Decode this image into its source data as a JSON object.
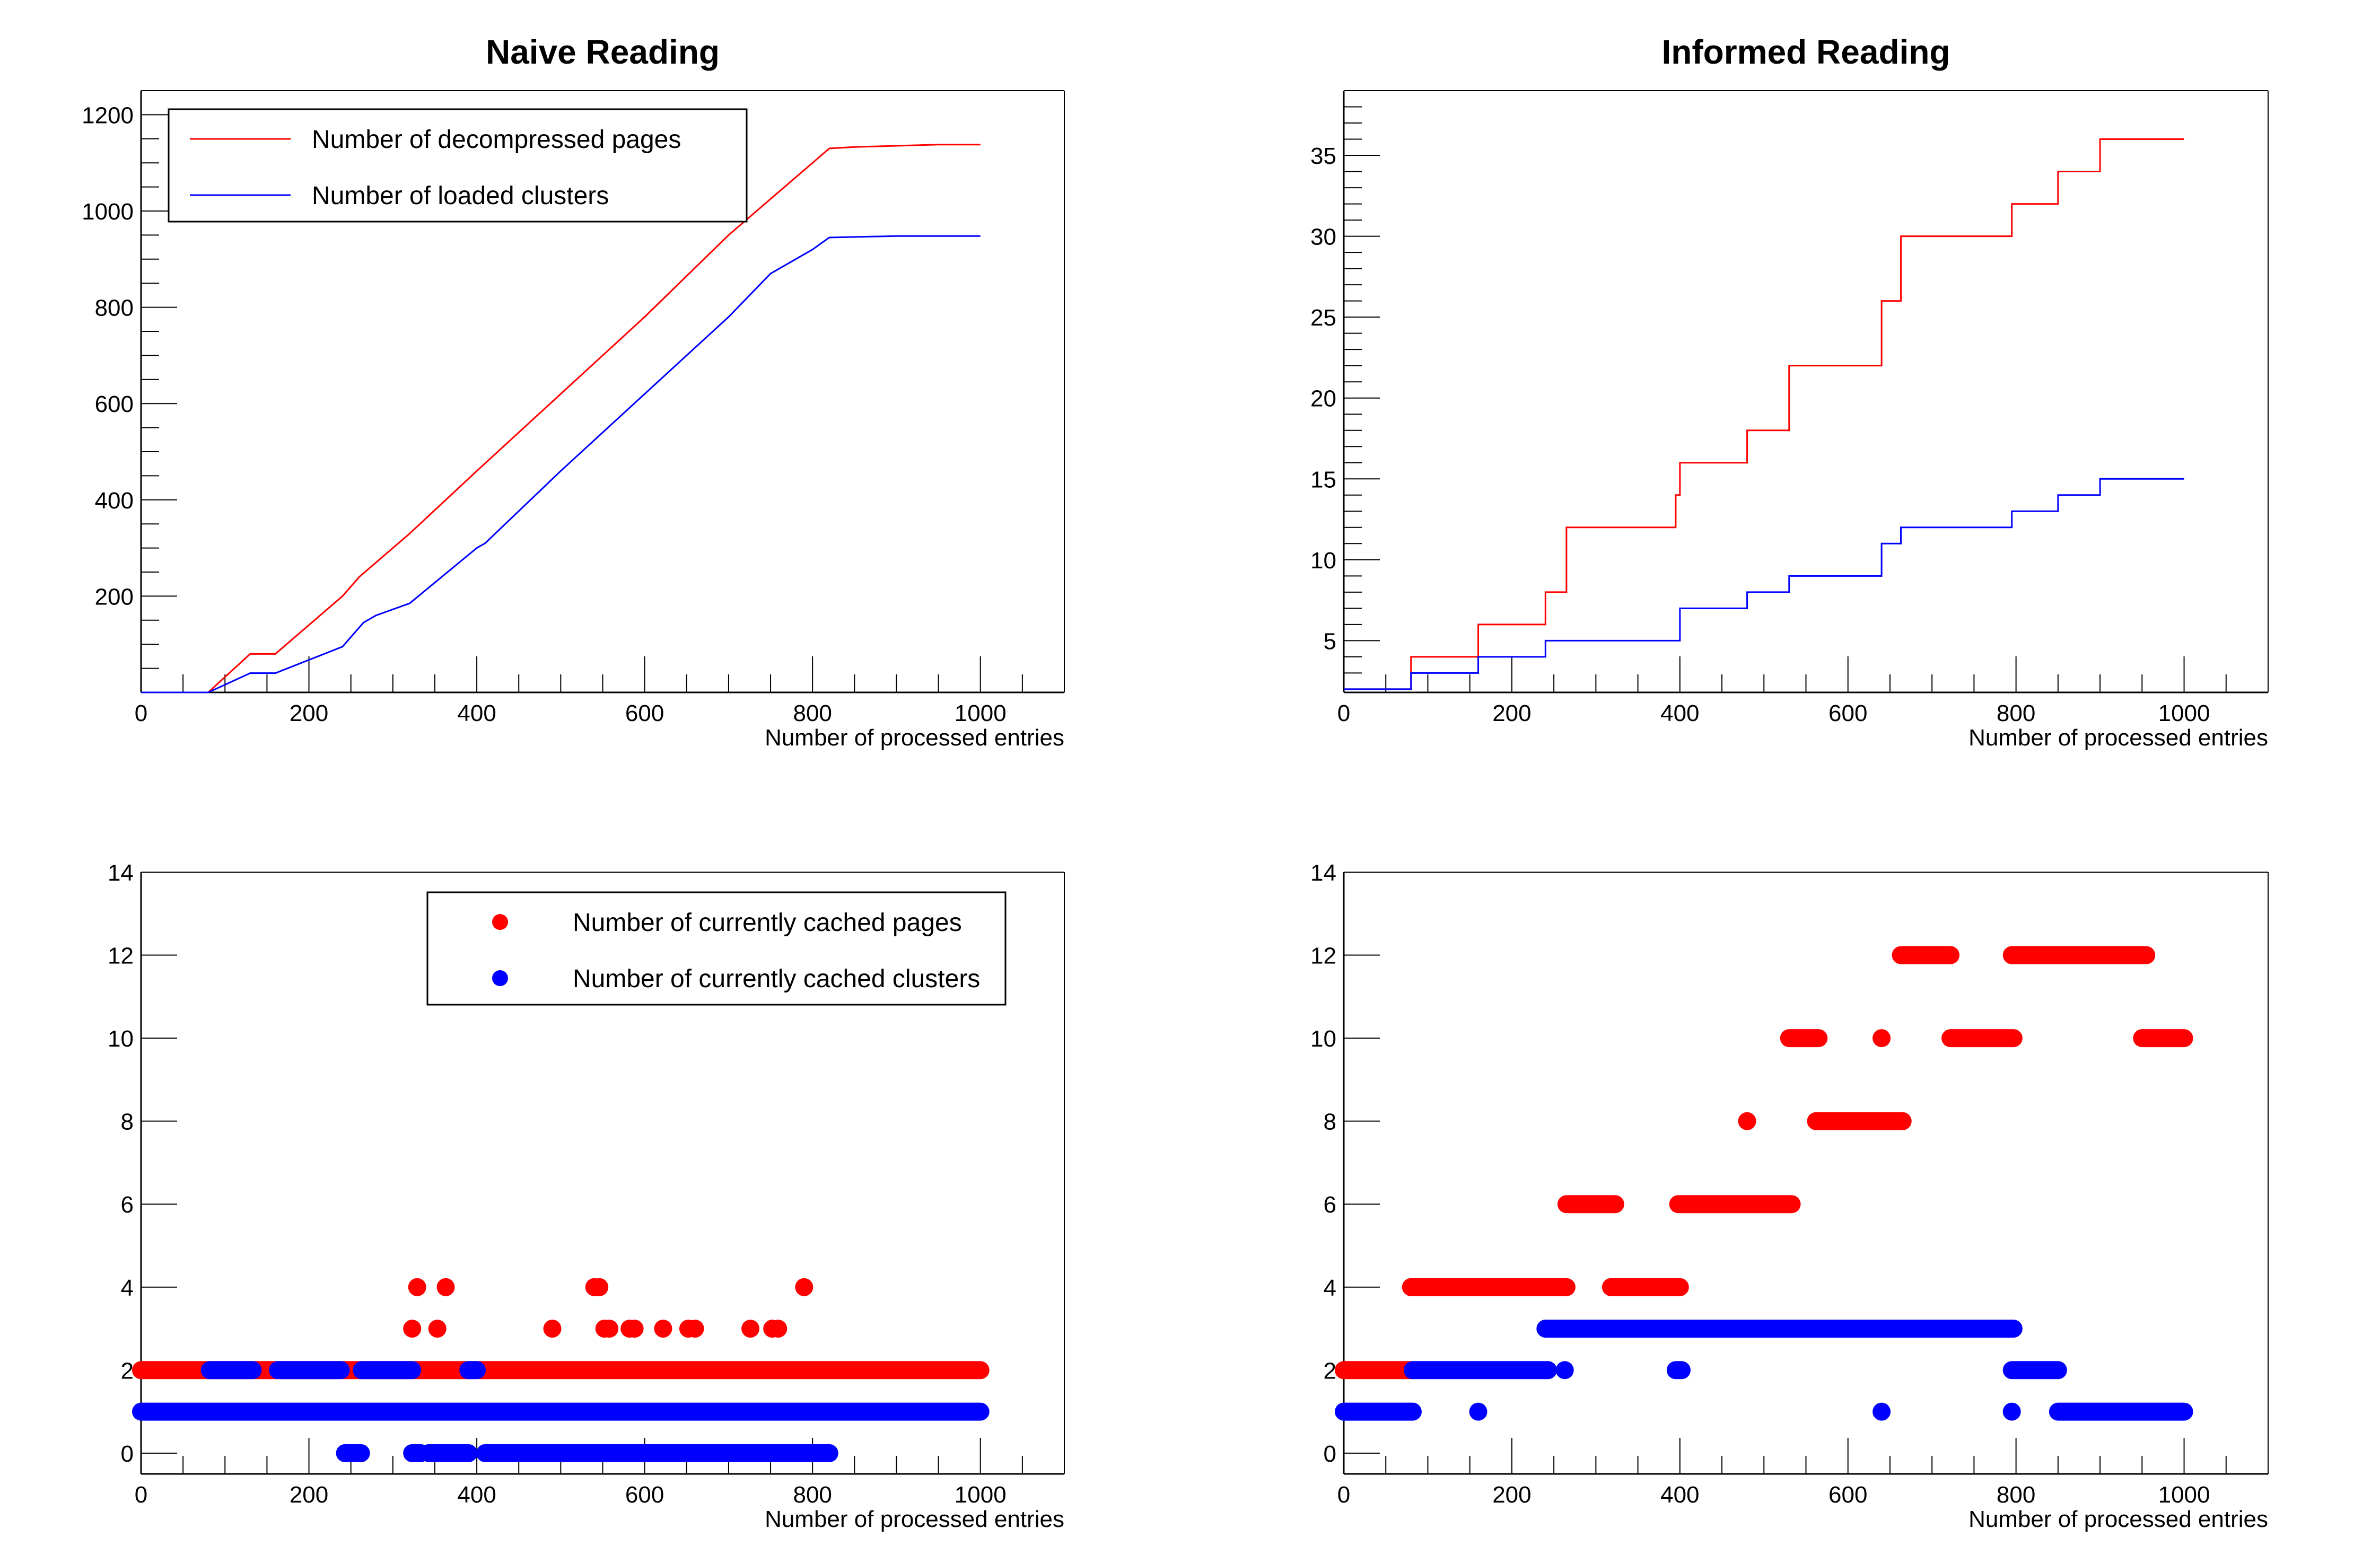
{
  "chart_data": [
    {
      "id": "naive-cumulative",
      "type": "line",
      "title": "Naive Reading",
      "xlabel": "Number of processed entries",
      "ylabel": "",
      "xlim": [
        0,
        1100
      ],
      "ylim": [
        0,
        1250
      ],
      "xticks": [
        0,
        200,
        400,
        600,
        800,
        1000
      ],
      "yticks": [
        200,
        400,
        600,
        800,
        1000,
        1200
      ],
      "x_minor_step": 50,
      "y_minor_step": 50,
      "grid": false,
      "legend": "top-left",
      "series": [
        {
          "name": "Number of decompressed pages",
          "color": "#ff0000",
          "style": "step",
          "x": [
            0,
            80,
            130,
            160,
            200,
            240,
            260,
            300,
            320,
            400,
            500,
            600,
            700,
            800,
            820,
            850,
            950,
            1000
          ],
          "y": [
            0,
            0,
            80,
            80,
            140,
            200,
            240,
            300,
            330,
            460,
            620,
            780,
            950,
            1100,
            1130,
            1133,
            1138,
            1138
          ]
        },
        {
          "name": "Number of loaded clusters",
          "color": "#0000ff",
          "style": "step",
          "x": [
            0,
            80,
            130,
            160,
            240,
            265,
            280,
            320,
            400,
            410,
            500,
            600,
            700,
            750,
            800,
            820,
            900,
            1000
          ],
          "y": [
            0,
            0,
            40,
            40,
            95,
            145,
            160,
            185,
            300,
            310,
            460,
            620,
            780,
            870,
            920,
            945,
            948,
            948
          ]
        }
      ]
    },
    {
      "id": "informed-cumulative",
      "type": "line",
      "title": "Informed Reading",
      "xlabel": "Number of processed entries",
      "ylabel": "",
      "xlim": [
        0,
        1100
      ],
      "ylim": [
        1.8,
        39
      ],
      "xticks": [
        0,
        200,
        400,
        600,
        800,
        1000
      ],
      "yticks": [
        5,
        10,
        15,
        20,
        25,
        30,
        35
      ],
      "x_minor_step": 50,
      "y_minor_step": 1,
      "grid": false,
      "legend": "none",
      "series": [
        {
          "name": "Number of decompressed pages",
          "color": "#ff0000",
          "style": "step",
          "x": [
            0,
            80,
            160,
            240,
            265,
            395,
            400,
            480,
            530,
            640,
            663,
            795,
            850,
            900,
            1000
          ],
          "y": [
            2,
            4,
            6,
            8,
            12,
            14,
            16,
            18,
            22,
            26,
            30,
            32,
            34,
            36,
            36
          ]
        },
        {
          "name": "Number of loaded clusters",
          "color": "#0000ff",
          "style": "step",
          "x": [
            0,
            80,
            160,
            240,
            400,
            480,
            530,
            640,
            663,
            795,
            850,
            900,
            1000
          ],
          "y": [
            2,
            3,
            4,
            5,
            7,
            8,
            9,
            11,
            12,
            13,
            14,
            15,
            15
          ]
        }
      ]
    },
    {
      "id": "naive-cached",
      "type": "scatter",
      "title": "",
      "xlabel": "Number of processed entries",
      "ylabel": "",
      "xlim": [
        0,
        1100
      ],
      "ylim": [
        -0.5,
        14
      ],
      "xticks": [
        0,
        200,
        400,
        600,
        800,
        1000
      ],
      "yticks": [
        0,
        2,
        4,
        6,
        8,
        10,
        12,
        14
      ],
      "x_minor_step": 50,
      "grid": false,
      "legend": "top-right",
      "series": [
        {
          "name": "Number of currently cached pages",
          "color": "#ff0000",
          "segments": [
            {
              "y": 2,
              "x_from": 0,
              "x_to": 1000
            }
          ],
          "points": [
            {
              "x": 323,
              "y": 3
            },
            {
              "x": 329,
              "y": 4
            },
            {
              "x": 353,
              "y": 3
            },
            {
              "x": 363,
              "y": 4
            },
            {
              "x": 490,
              "y": 3
            },
            {
              "x": 540,
              "y": 4
            },
            {
              "x": 546,
              "y": 4
            },
            {
              "x": 552,
              "y": 3
            },
            {
              "x": 558,
              "y": 3
            },
            {
              "x": 582,
              "y": 3
            },
            {
              "x": 588,
              "y": 3
            },
            {
              "x": 622,
              "y": 3
            },
            {
              "x": 652,
              "y": 3
            },
            {
              "x": 660,
              "y": 3
            },
            {
              "x": 726,
              "y": 3
            },
            {
              "x": 752,
              "y": 3
            },
            {
              "x": 759,
              "y": 3
            },
            {
              "x": 790,
              "y": 4
            }
          ]
        },
        {
          "name": "Number of currently cached clusters",
          "color": "#0000ff",
          "segments": [
            {
              "y": 1,
              "x_from": 0,
              "x_to": 1000
            },
            {
              "y": 2,
              "x_from": 82,
              "x_to": 133
            },
            {
              "y": 2,
              "x_from": 163,
              "x_to": 238
            },
            {
              "y": 2,
              "x_from": 263,
              "x_to": 323
            },
            {
              "y": 2,
              "x_from": 390,
              "x_to": 400
            },
            {
              "y": 0,
              "x_from": 243,
              "x_to": 262
            },
            {
              "y": 0,
              "x_from": 323,
              "x_to": 333
            },
            {
              "y": 0,
              "x_from": 343,
              "x_to": 390
            },
            {
              "y": 0,
              "x_from": 410,
              "x_to": 820
            }
          ],
          "points": []
        }
      ]
    },
    {
      "id": "informed-cached",
      "type": "scatter",
      "title": "",
      "xlabel": "Number of processed entries",
      "ylabel": "",
      "xlim": [
        0,
        1100
      ],
      "ylim": [
        -0.5,
        14
      ],
      "xticks": [
        0,
        200,
        400,
        600,
        800,
        1000
      ],
      "yticks": [
        0,
        2,
        4,
        6,
        8,
        10,
        12,
        14
      ],
      "x_minor_step": 50,
      "grid": false,
      "legend": "none",
      "series": [
        {
          "name": "Number of currently cached pages",
          "color": "#ff0000",
          "segments": [
            {
              "y": 2,
              "x_from": 0,
              "x_to": 80
            },
            {
              "y": 4,
              "x_from": 80,
              "x_to": 265
            },
            {
              "y": 4,
              "x_from": 318,
              "x_to": 400
            },
            {
              "y": 6,
              "x_from": 265,
              "x_to": 323
            },
            {
              "y": 6,
              "x_from": 398,
              "x_to": 533
            },
            {
              "y": 8,
              "x_from": 562,
              "x_to": 665
            },
            {
              "y": 10,
              "x_from": 530,
              "x_to": 565
            },
            {
              "y": 10,
              "x_from": 722,
              "x_to": 797
            },
            {
              "y": 10,
              "x_from": 950,
              "x_to": 1000
            },
            {
              "y": 12,
              "x_from": 663,
              "x_to": 722
            },
            {
              "y": 12,
              "x_from": 795,
              "x_to": 955
            }
          ],
          "points": [
            {
              "x": 480,
              "y": 8
            },
            {
              "x": 640,
              "y": 10
            }
          ]
        },
        {
          "name": "Number of currently cached clusters",
          "color": "#0000ff",
          "segments": [
            {
              "y": 1,
              "x_from": 0,
              "x_to": 82
            },
            {
              "y": 1,
              "x_from": 850,
              "x_to": 1000
            },
            {
              "y": 2,
              "x_from": 82,
              "x_to": 243
            },
            {
              "y": 2,
              "x_from": 395,
              "x_to": 402
            },
            {
              "y": 2,
              "x_from": 795,
              "x_to": 850
            },
            {
              "y": 3,
              "x_from": 240,
              "x_to": 797
            }
          ],
          "points": [
            {
              "x": 160,
              "y": 1
            },
            {
              "x": 640,
              "y": 1
            },
            {
              "x": 795,
              "y": 1
            },
            {
              "x": 263,
              "y": 2
            }
          ]
        }
      ]
    }
  ]
}
